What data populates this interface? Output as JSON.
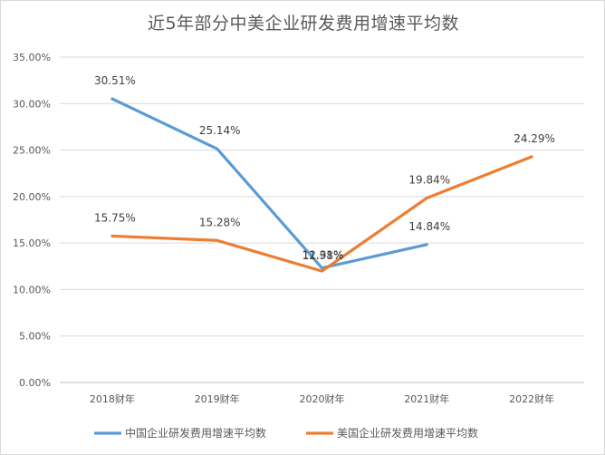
{
  "chart_data": {
    "type": "line",
    "title": "近5年部分中美企业研发费用增速平均数",
    "categories": [
      "2018财年",
      "2019财年",
      "2020财年",
      "2021财年",
      "2022财年"
    ],
    "ylim": [
      0,
      35
    ],
    "y_ticks": [
      "0.00%",
      "5.00%",
      "10.00%",
      "15.00%",
      "20.00%",
      "25.00%",
      "30.00%",
      "35.00%"
    ],
    "grid": true,
    "legend_position": "bottom",
    "series": [
      {
        "name": "中国企业研发费用增速平均数",
        "color": "#5b9bd5",
        "values": [
          30.51,
          25.14,
          12.31,
          14.84,
          null
        ],
        "labels": [
          "30.51%",
          "25.14%",
          "12.31%",
          "14.84%",
          ""
        ]
      },
      {
        "name": "美国企业研发费用增速平均数",
        "color": "#ed7d31",
        "values": [
          15.75,
          15.28,
          11.98,
          19.84,
          24.29
        ],
        "labels": [
          "15.75%",
          "15.28%",
          "11.98%",
          "19.84%",
          "24.29%"
        ]
      }
    ]
  }
}
